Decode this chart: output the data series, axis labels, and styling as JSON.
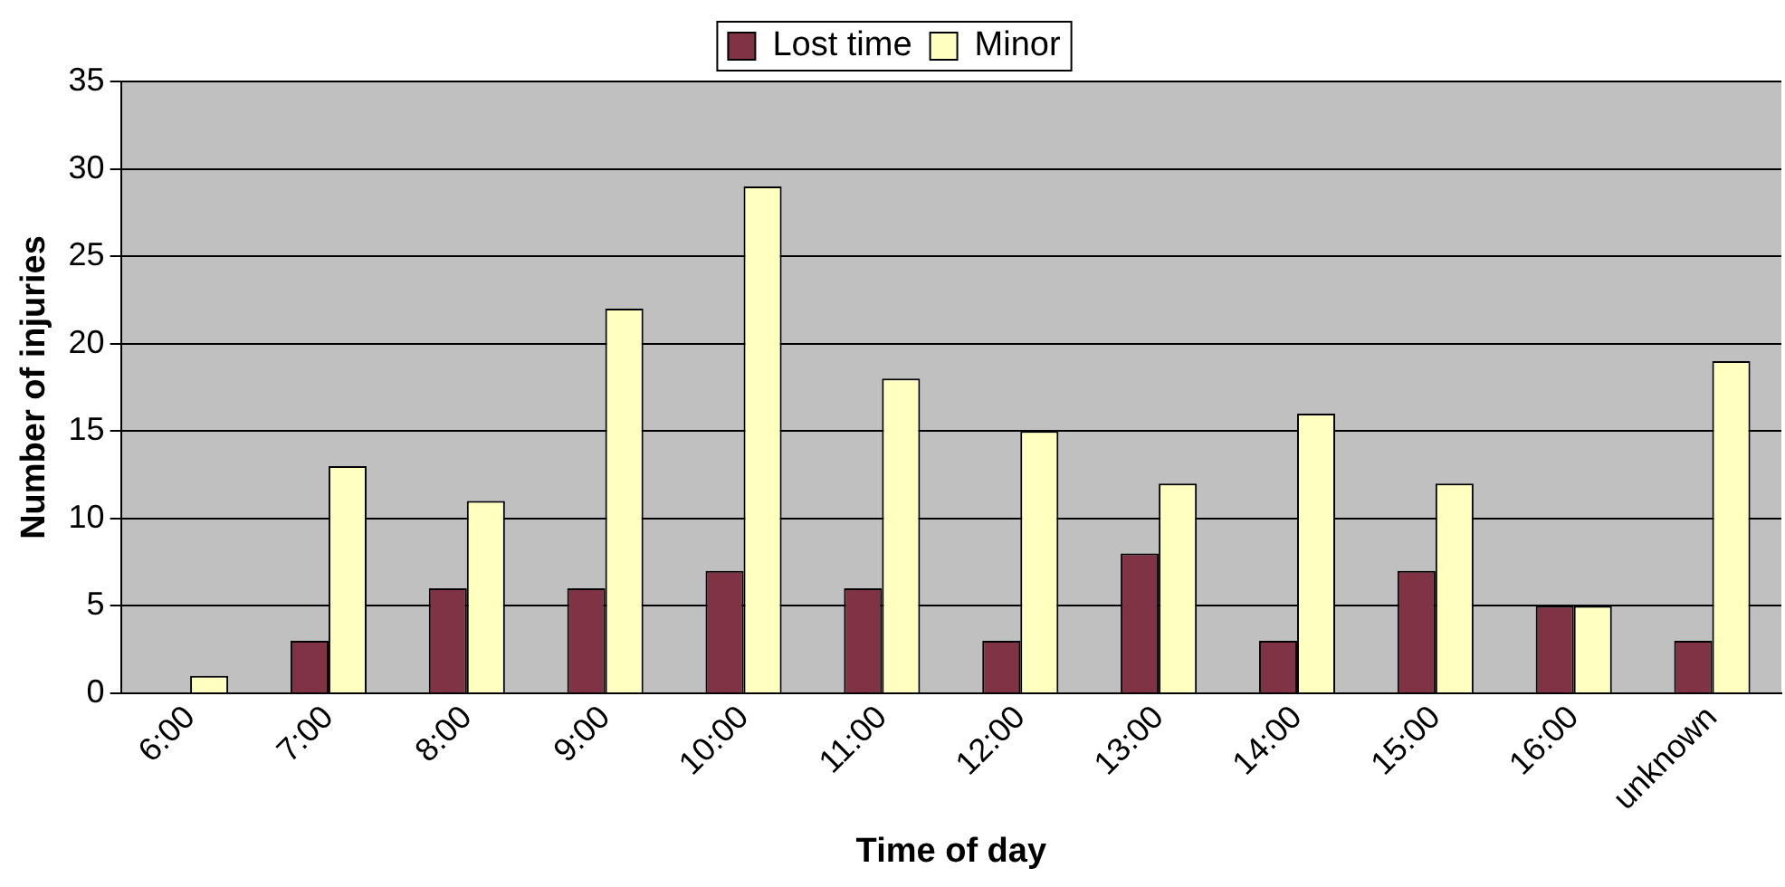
{
  "chart_data": {
    "type": "bar",
    "xlabel": "Time of day",
    "ylabel": "Number of injuries",
    "categories": [
      "6:00",
      "7:00",
      "8:00",
      "9:00",
      "10:00",
      "11:00",
      "12:00",
      "13:00",
      "14:00",
      "15:00",
      "16:00",
      "unknown"
    ],
    "series": [
      {
        "name": "Lost time",
        "color": "#803345",
        "values": [
          0,
          3,
          6,
          6,
          7,
          6,
          3,
          8,
          3,
          7,
          5,
          3
        ]
      },
      {
        "name": "Minor",
        "color": "#ffffc0",
        "values": [
          1,
          13,
          11,
          22,
          29,
          18,
          15,
          12,
          16,
          12,
          5,
          19
        ]
      }
    ],
    "ylim": [
      0,
      35
    ],
    "yticks": [
      0,
      5,
      10,
      15,
      20,
      25,
      30,
      35
    ],
    "grid": "y",
    "legend": "top"
  }
}
